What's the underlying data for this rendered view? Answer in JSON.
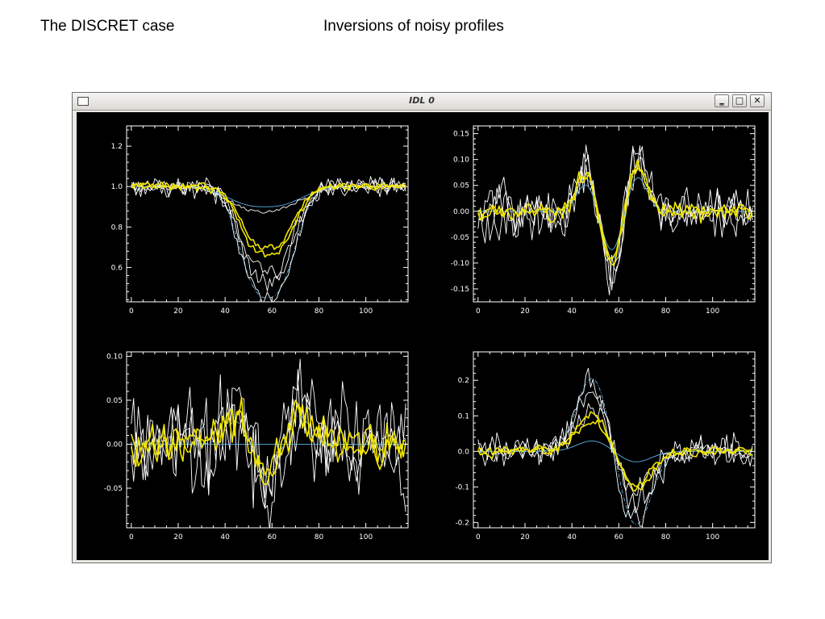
{
  "slide": {
    "title_left": "The DISCRET case",
    "title_right": "Inversions of noisy profiles"
  },
  "window": {
    "title": "IDL 0",
    "buttons": {
      "minimize": "‗",
      "maximize": "□",
      "close": "✕"
    },
    "icons": [
      "window-menu-icon",
      "minimize-icon",
      "maximize-icon",
      "close-icon"
    ]
  },
  "chart_data": [
    {
      "type": "line",
      "title": "",
      "xlabel": "",
      "ylabel": "",
      "xlim": [
        -2,
        118
      ],
      "ylim": [
        0.43,
        1.3
      ],
      "xticks": [
        0,
        20,
        40,
        60,
        80,
        100
      ],
      "yticks": [
        0.6,
        0.8,
        1.0,
        1.2
      ],
      "ytick_labels": [
        "0.6",
        "0.8",
        "1.0",
        "1.2"
      ],
      "series": [
        {
          "shape": "dip",
          "center": 58,
          "width": 9,
          "amplitude": -0.55,
          "base": 1.0,
          "color": "#5ab4e8",
          "style": "dashed",
          "noise": 0
        },
        {
          "shape": "dip",
          "center": 58,
          "width": 9,
          "amplitude": -0.55,
          "base": 1.0,
          "color": "#ffffff",
          "style": "solid",
          "noise": 0.04
        },
        {
          "shape": "dip",
          "center": 58,
          "width": 9,
          "amplitude": -0.48,
          "base": 1.0,
          "color": "#ffffff",
          "style": "solid",
          "noise": 0.04
        },
        {
          "shape": "dip",
          "center": 58,
          "width": 9,
          "amplitude": -0.42,
          "base": 1.0,
          "color": "#ffffff",
          "style": "solid",
          "noise": 0.04
        },
        {
          "shape": "dip",
          "center": 57,
          "width": 12,
          "amplitude": -0.1,
          "base": 1.0,
          "color": "#5ab4e8",
          "style": "solid",
          "noise": 0
        },
        {
          "shape": "dip",
          "center": 57,
          "width": 12,
          "amplitude": -0.12,
          "base": 1.0,
          "color": "#ffffff",
          "style": "solid",
          "noise": 0.01
        },
        {
          "shape": "dip",
          "center": 58,
          "width": 9,
          "amplitude": -0.34,
          "base": 1.0,
          "color": "#f2e600",
          "style": "solid",
          "noise": 0.018
        },
        {
          "shape": "dip",
          "center": 58,
          "width": 9,
          "amplitude": -0.3,
          "base": 1.0,
          "color": "#f2e600",
          "style": "solid",
          "noise": 0.014
        }
      ]
    },
    {
      "type": "line",
      "title": "",
      "xlabel": "",
      "ylabel": "",
      "xlim": [
        -2,
        118
      ],
      "ylim": [
        -0.175,
        0.165
      ],
      "xticks": [
        0,
        20,
        40,
        60,
        80,
        100
      ],
      "yticks": [
        -0.15,
        -0.1,
        -0.05,
        0.0,
        0.05,
        0.1,
        0.15
      ],
      "ytick_labels": [
        "-0.15",
        "-0.10",
        "-0.05",
        "0.00",
        "0.05",
        "0.10",
        "0.15"
      ],
      "series": [
        {
          "shape": "wave3",
          "center": 57,
          "width": 5,
          "amplitude": 0.09,
          "base": 0,
          "color": "#5ab4e8",
          "style": "dashed",
          "noise": 0
        },
        {
          "shape": "wave3",
          "center": 57,
          "width": 5,
          "amplitude": 0.12,
          "base": 0,
          "color": "#ffffff",
          "style": "solid",
          "noise": 0.04
        },
        {
          "shape": "wave3",
          "center": 57,
          "width": 5,
          "amplitude": 0.1,
          "base": 0,
          "color": "#ffffff",
          "style": "solid",
          "noise": 0.04
        },
        {
          "shape": "wave3",
          "center": 57,
          "width": 5,
          "amplitude": 0.11,
          "base": 0,
          "color": "#ffffff",
          "style": "solid",
          "noise": 0.04
        },
        {
          "shape": "wave3",
          "center": 57,
          "width": 5,
          "amplitude": 0.07,
          "base": 0,
          "color": "#5ab4e8",
          "style": "solid",
          "noise": 0
        },
        {
          "shape": "wave3",
          "center": 57,
          "width": 5,
          "amplitude": 0.1,
          "base": 0,
          "color": "#f2e600",
          "style": "solid",
          "noise": 0.015
        },
        {
          "shape": "wave3",
          "center": 57,
          "width": 5,
          "amplitude": 0.09,
          "base": 0,
          "color": "#f2e600",
          "style": "solid",
          "noise": 0.012
        }
      ]
    },
    {
      "type": "line",
      "title": "",
      "xlabel": "",
      "ylabel": "",
      "xlim": [
        -2,
        118
      ],
      "ylim": [
        -0.095,
        0.105
      ],
      "xticks": [
        0,
        20,
        40,
        60,
        80,
        100
      ],
      "yticks": [
        -0.05,
        0.0,
        0.05,
        0.1
      ],
      "ytick_labels": [
        "-0.05",
        "0.00",
        "0.05",
        "0.10"
      ],
      "series": [
        {
          "shape": "wave3",
          "center": 58,
          "width": 6,
          "amplitude": 0.035,
          "base": 0,
          "color": "#5ab4e8",
          "style": "dashed",
          "noise": 0
        },
        {
          "shape": "wave3",
          "center": 58,
          "width": 6,
          "amplitude": 0.05,
          "base": 0,
          "color": "#ffffff",
          "style": "solid",
          "noise": 0.045
        },
        {
          "shape": "wave3",
          "center": 58,
          "width": 6,
          "amplitude": 0.05,
          "base": 0,
          "color": "#ffffff",
          "style": "solid",
          "noise": 0.045
        },
        {
          "shape": "wave3",
          "center": 58,
          "width": 6,
          "amplitude": 0.05,
          "base": 0,
          "color": "#ffffff",
          "style": "solid",
          "noise": 0.045
        },
        {
          "shape": "flat",
          "center": 58,
          "width": 6,
          "amplitude": 0,
          "base": 0,
          "color": "#5ab4e8",
          "style": "solid",
          "noise": 0
        },
        {
          "shape": "wave3",
          "center": 58,
          "width": 6,
          "amplitude": 0.04,
          "base": 0,
          "color": "#f2e600",
          "style": "solid",
          "noise": 0.02
        },
        {
          "shape": "wave3",
          "center": 58,
          "width": 6,
          "amplitude": 0.035,
          "base": 0,
          "color": "#f2e600",
          "style": "solid",
          "noise": 0.018
        }
      ]
    },
    {
      "type": "line",
      "title": "",
      "xlabel": "",
      "ylabel": "",
      "xlim": [
        -2,
        118
      ],
      "ylim": [
        -0.215,
        0.28
      ],
      "xticks": [
        0,
        20,
        40,
        60,
        80,
        100
      ],
      "yticks": [
        -0.2,
        -0.1,
        0.0,
        0.1,
        0.2
      ],
      "ytick_labels": [
        "-0.2",
        "-0.1",
        "0.0",
        "0.1",
        "0.2"
      ],
      "series": [
        {
          "shape": "antisym",
          "center": 58,
          "width": 7,
          "amplitude": 0.21,
          "base": 0,
          "color": "#5ab4e8",
          "style": "dashed",
          "noise": 0
        },
        {
          "shape": "antisym",
          "center": 58,
          "width": 7,
          "amplitude": 0.2,
          "base": 0,
          "color": "#ffffff",
          "style": "solid",
          "noise": 0.035
        },
        {
          "shape": "antisym",
          "center": 58,
          "width": 7,
          "amplitude": 0.16,
          "base": 0,
          "color": "#ffffff",
          "style": "solid",
          "noise": 0.035
        },
        {
          "shape": "antisym",
          "center": 58,
          "width": 7,
          "amplitude": 0.12,
          "base": 0,
          "color": "#ffffff",
          "style": "solid",
          "noise": 0.035
        },
        {
          "shape": "antisym",
          "center": 58,
          "width": 7,
          "amplitude": 0.03,
          "base": 0,
          "color": "#5ab4e8",
          "style": "solid",
          "noise": 0
        },
        {
          "shape": "antisym",
          "center": 58,
          "width": 7,
          "amplitude": 0.11,
          "base": 0,
          "color": "#f2e600",
          "style": "solid",
          "noise": 0.012
        },
        {
          "shape": "antisym",
          "center": 58,
          "width": 7,
          "amplitude": 0.09,
          "base": 0,
          "color": "#f2e600",
          "style": "solid",
          "noise": 0.012
        }
      ]
    }
  ]
}
